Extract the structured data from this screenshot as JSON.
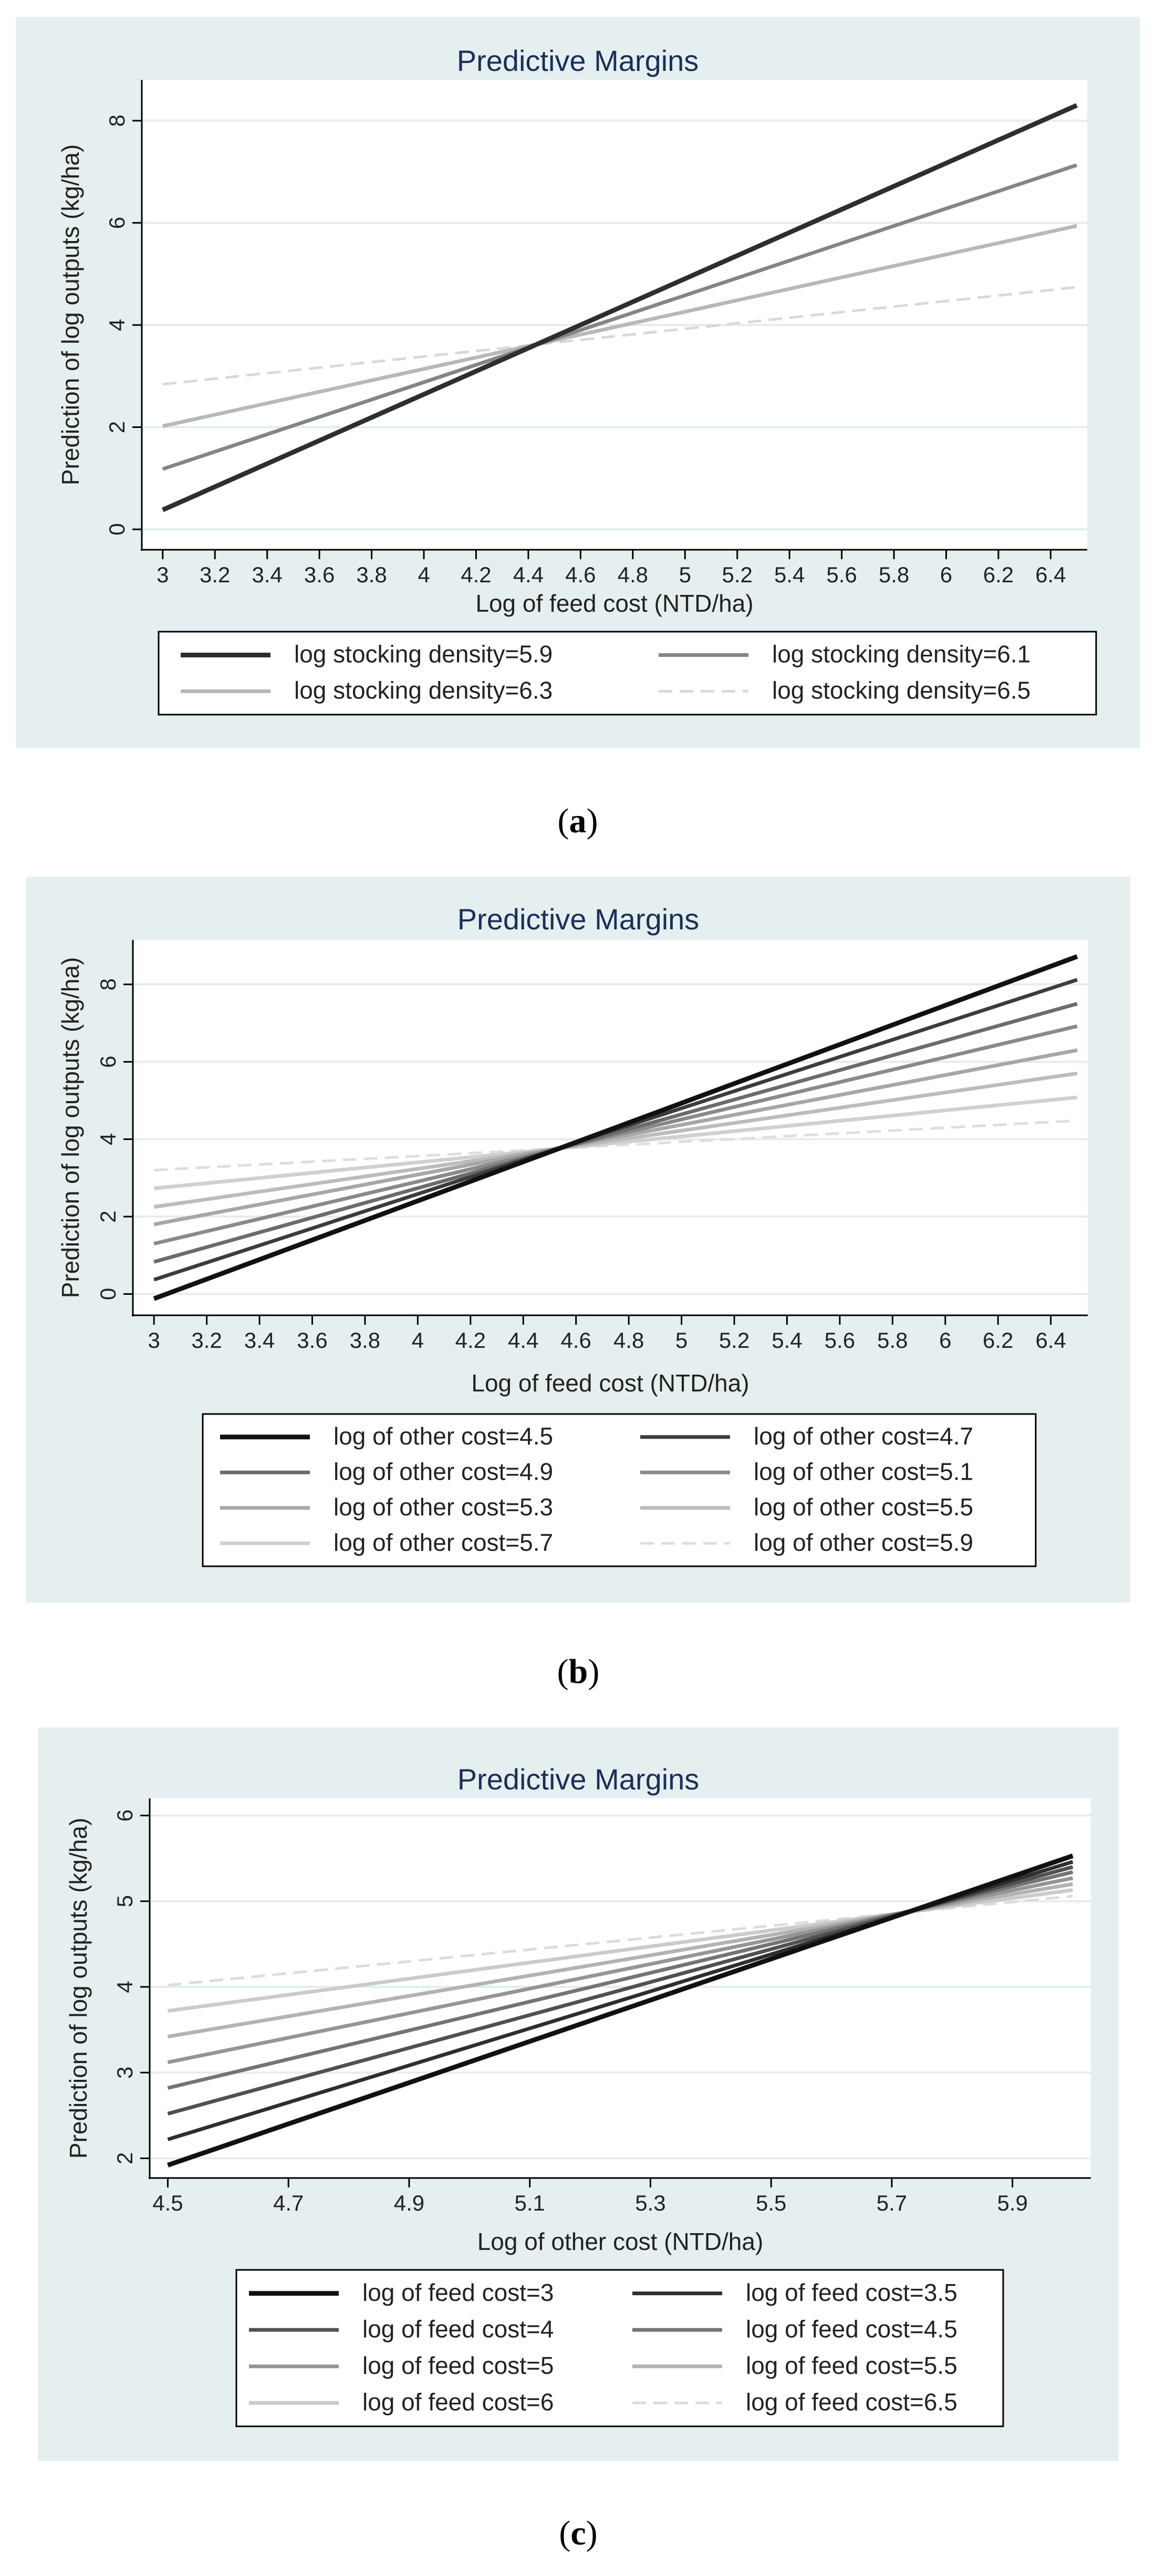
{
  "chart_data": [
    {
      "id": "a",
      "type": "line",
      "title": "Predictive Margins",
      "xlabel": "Log of feed cost (NTD/ha)",
      "ylabel": "Prediction of log outputs (kg/ha)",
      "x_ticks": [
        "3",
        "3.2",
        "3.4",
        "3.6",
        "3.8",
        "4",
        "4.2",
        "4.4",
        "4.6",
        "4.8",
        "5",
        "5.2",
        "5.4",
        "5.6",
        "5.8",
        "6",
        "6.2",
        "6.4"
      ],
      "y_ticks": [
        "0",
        "2",
        "4",
        "6",
        "8"
      ],
      "xlim": [
        2.92,
        6.54
      ],
      "ylim": [
        -0.4,
        8.8
      ],
      "grid": true,
      "legend_position": "bottom",
      "legend_columns": 2,
      "series": [
        {
          "name": "log stocking density=5.9",
          "x": [
            3,
            6.5
          ],
          "y": [
            0.38,
            8.3
          ],
          "color": "#2e2e2e",
          "width": 9,
          "dashed": false
        },
        {
          "name": "log stocking density=6.1",
          "x": [
            3,
            6.5
          ],
          "y": [
            1.18,
            7.13
          ],
          "color": "#858585",
          "width": 7,
          "dashed": false
        },
        {
          "name": "log stocking density=6.3",
          "x": [
            3,
            6.5
          ],
          "y": [
            2.02,
            5.94
          ],
          "color": "#b8b8b8",
          "width": 7,
          "dashed": false
        },
        {
          "name": "log stocking density=6.5",
          "x": [
            3,
            6.5
          ],
          "y": [
            2.84,
            4.74
          ],
          "color": "#d9d9d9",
          "width": 5,
          "dashed": true
        }
      ],
      "caption_letter": "a"
    },
    {
      "id": "b",
      "type": "line",
      "title": "Predictive Margins",
      "xlabel": "Log of feed cost (NTD/ha)",
      "ylabel": "Prediction of log outputs (kg/ha)",
      "x_ticks": [
        "3",
        "3.2",
        "3.4",
        "3.6",
        "3.8",
        "4",
        "4.2",
        "4.4",
        "4.6",
        "4.8",
        "5",
        "5.2",
        "5.4",
        "5.6",
        "5.8",
        "6",
        "6.2",
        "6.4"
      ],
      "y_ticks": [
        "0",
        "2",
        "4",
        "6",
        "8"
      ],
      "xlim": [
        2.92,
        6.54
      ],
      "ylim": [
        -0.55,
        9.15
      ],
      "grid": true,
      "legend_position": "bottom",
      "legend_columns": 2,
      "series": [
        {
          "name": "log of other cost=4.5",
          "x": [
            3,
            6.5
          ],
          "y": [
            -0.12,
            8.72
          ],
          "color": "#111111",
          "width": 9,
          "dashed": false
        },
        {
          "name": "log of other cost=4.7",
          "x": [
            3,
            6.5
          ],
          "y": [
            0.37,
            8.12
          ],
          "color": "#3c3c3c",
          "width": 7,
          "dashed": false
        },
        {
          "name": "log of other cost=4.9",
          "x": [
            3,
            6.5
          ],
          "y": [
            0.83,
            7.5
          ],
          "color": "#6b6b6b",
          "width": 7,
          "dashed": false
        },
        {
          "name": "log of other cost=5.1",
          "x": [
            3,
            6.5
          ],
          "y": [
            1.3,
            6.92
          ],
          "color": "#8a8a8a",
          "width": 7,
          "dashed": false
        },
        {
          "name": "log of other cost=5.3",
          "x": [
            3,
            6.5
          ],
          "y": [
            1.8,
            6.3
          ],
          "color": "#a7a7a7",
          "width": 7,
          "dashed": false
        },
        {
          "name": "log of other cost=5.5",
          "x": [
            3,
            6.5
          ],
          "y": [
            2.25,
            5.7
          ],
          "color": "#bcbcbc",
          "width": 7,
          "dashed": false
        },
        {
          "name": "log of other cost=5.7",
          "x": [
            3,
            6.5
          ],
          "y": [
            2.73,
            5.08
          ],
          "color": "#d0d0d0",
          "width": 7,
          "dashed": false
        },
        {
          "name": "log of other cost=5.9",
          "x": [
            3,
            6.5
          ],
          "y": [
            3.2,
            4.48
          ],
          "color": "#dedede",
          "width": 5,
          "dashed": true
        }
      ],
      "caption_letter": "b"
    },
    {
      "id": "c",
      "type": "line",
      "title": "Predictive Margins",
      "xlabel": "Log of other cost (NTD/ha)",
      "ylabel": "Prediction of log outputs (kg/ha)",
      "x_ticks": [
        "4.5",
        "4.7",
        "4.9",
        "5.1",
        "5.3",
        "5.5",
        "5.7",
        "5.9"
      ],
      "y_ticks": [
        "2",
        "3",
        "4",
        "5",
        "6"
      ],
      "xlim": [
        4.47,
        6.03
      ],
      "ylim": [
        1.77,
        6.2
      ],
      "grid": true,
      "legend_position": "bottom",
      "legend_columns": 2,
      "series": [
        {
          "name": "log of feed cost=3",
          "x": [
            4.5,
            6.0
          ],
          "y": [
            1.92,
            5.53
          ],
          "color": "#111111",
          "width": 9,
          "dashed": false
        },
        {
          "name": "log of feed cost=3.5",
          "x": [
            4.5,
            6.0
          ],
          "y": [
            2.22,
            5.46
          ],
          "color": "#2e2e2e",
          "width": 7,
          "dashed": false
        },
        {
          "name": "log of feed cost=4",
          "x": [
            4.5,
            6.0
          ],
          "y": [
            2.52,
            5.4
          ],
          "color": "#505050",
          "width": 7,
          "dashed": false
        },
        {
          "name": "log of feed cost=4.5",
          "x": [
            4.5,
            6.0
          ],
          "y": [
            2.82,
            5.34
          ],
          "color": "#747474",
          "width": 7,
          "dashed": false
        },
        {
          "name": "log of feed cost=5",
          "x": [
            4.5,
            6.0
          ],
          "y": [
            3.12,
            5.27
          ],
          "color": "#959595",
          "width": 7,
          "dashed": false
        },
        {
          "name": "log of feed cost=5.5",
          "x": [
            4.5,
            6.0
          ],
          "y": [
            3.42,
            5.2
          ],
          "color": "#b3b3b3",
          "width": 7,
          "dashed": false
        },
        {
          "name": "log of feed cost=6",
          "x": [
            4.5,
            6.0
          ],
          "y": [
            3.72,
            5.13
          ],
          "color": "#cbcbcb",
          "width": 7,
          "dashed": false
        },
        {
          "name": "log of feed cost=6.5",
          "x": [
            4.5,
            6.0
          ],
          "y": [
            4.02,
            5.06
          ],
          "color": "#dcdcdc",
          "width": 5,
          "dashed": true
        }
      ],
      "caption_letter": "c"
    }
  ],
  "style": {
    "panel_bg": "#e6efef",
    "plot_bg": "#ffffff",
    "grid_color": "#e3eded",
    "axis_color": "#000000",
    "title_color": "#1a2f5a"
  }
}
